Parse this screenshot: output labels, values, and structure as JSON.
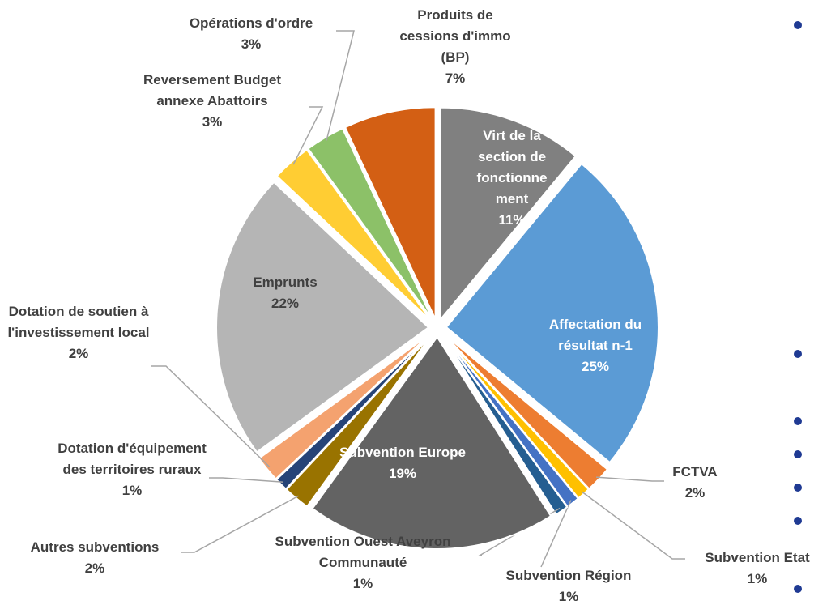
{
  "chart_data": {
    "type": "pie",
    "categories": [
      "Virt de la section de fonctionnement",
      "Affectation du résultat n-1",
      "FCTVA",
      "Subvention Etat",
      "Subvention Région",
      "Subvention Ouest Aveyron Communauté",
      "Subvention Europe",
      "Autres subventions",
      "Dotation d'équipement des territoires ruraux",
      "Dotation de soutien à l'investissement local",
      "Emprunts",
      "Reversement Budget annexe Abattoirs",
      "Opérations d'ordre",
      "Produits de cessions d'immo (BP)"
    ],
    "values": [
      11,
      25,
      2,
      1,
      1,
      1,
      19,
      2,
      1,
      2,
      22,
      3,
      3,
      7
    ],
    "value_labels": [
      "11%",
      "25%",
      "2%",
      "1%",
      "1%",
      "1%",
      "19%",
      "2%",
      "1%",
      "2%",
      "22%",
      "3%",
      "3%",
      "7%"
    ],
    "colors": [
      "#808080",
      "#5b9bd5",
      "#ed7d31",
      "#ffc000",
      "#4472c4",
      "#255e91",
      "#636363",
      "#997300",
      "#264478",
      "#f4a26f",
      "#b5b5b5",
      "#ffcd33",
      "#8cc168",
      "#d35f14"
    ]
  }
}
